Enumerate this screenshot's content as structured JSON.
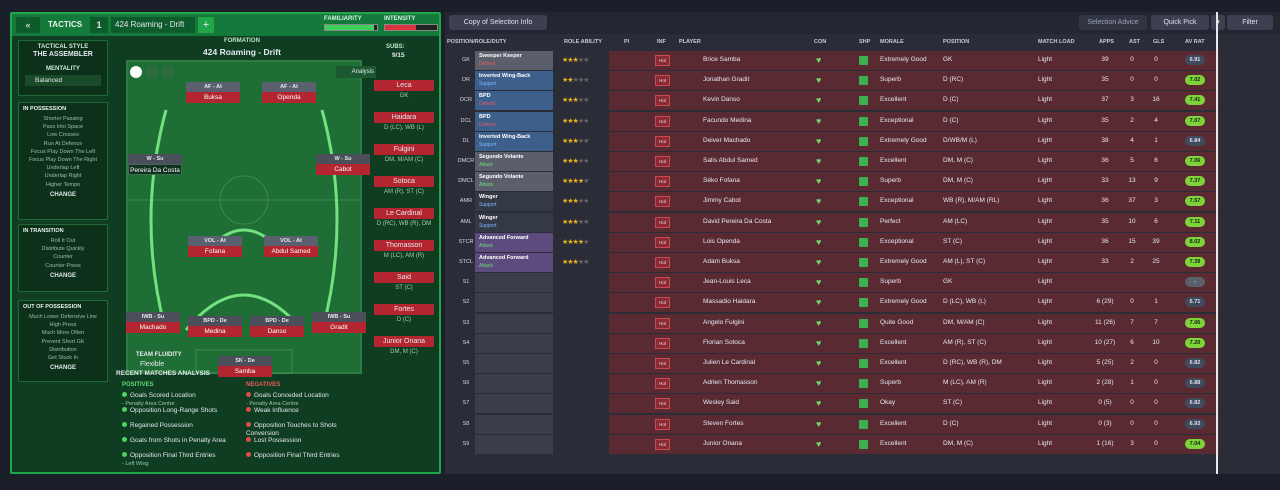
{
  "tactics_header": {
    "label": "TACTICS",
    "slot": "1",
    "tactic_name": "424 Roaming - Drift",
    "familiarity_label": "FAMILIARITY",
    "intensity_label": "INTENSITY",
    "familiarity": 0.95,
    "intensity": 0.6
  },
  "tactical_style": {
    "title": "TACTICAL STYLE",
    "name": "THE ASSEMBLER"
  },
  "mentality": {
    "label": "MENTALITY",
    "value": "Balanced"
  },
  "in_possession": {
    "title": "IN POSSESSION",
    "items": [
      "Shorter Passing",
      "Pass Into Space",
      "Low Crosses",
      "Run At Defence",
      "Focus Play Down The Left",
      "Focus Play Down The Right",
      "Underlap Left",
      "Underlap Right",
      "Higher Tempo"
    ],
    "change": "CHANGE"
  },
  "in_transition": {
    "title": "IN TRANSITION",
    "items": [
      "Roll It Out",
      "Distribute Quickly",
      "Counter",
      "Counter-Press"
    ],
    "change": "CHANGE"
  },
  "out_possession": {
    "title": "OUT OF POSSESSION",
    "items": [
      "Much Lower Defensive Line",
      "High Press",
      "Much More Often",
      "Prevent Short GK",
      "Distribution",
      "Get Stuck In"
    ],
    "change": "CHANGE"
  },
  "formation": {
    "title": "FORMATION",
    "name": "424 Roaming - Drift",
    "analysis": "Analysis"
  },
  "team_fluidity": {
    "label": "TEAM FLUIDITY",
    "value": "Flexible"
  },
  "pitch_positions": [
    {
      "role": "AF - At",
      "name": "Buksa"
    },
    {
      "role": "AF - At",
      "name": "Openda"
    },
    {
      "role": "W - Su",
      "name": "Pereira Da Costa"
    },
    {
      "role": "W - Su",
      "name": "Cabot"
    },
    {
      "role": "VOL - At",
      "name": "Fofana"
    },
    {
      "role": "VOL - At",
      "name": "Abdul Samed"
    },
    {
      "role": "IWB - Su",
      "name": "Machado"
    },
    {
      "role": "BPD - De",
      "name": "Medina"
    },
    {
      "role": "BPD - De",
      "name": "Danso"
    },
    {
      "role": "IWB - Su",
      "name": "Gradit"
    },
    {
      "role": "SK - De",
      "name": "Samba"
    }
  ],
  "subs": {
    "title": "SUBS:",
    "count": "9/15",
    "players": [
      {
        "name": "Leca",
        "pos": "GK"
      },
      {
        "name": "Haidara",
        "pos": "D (LC), WB (L)"
      },
      {
        "name": "Fulgini",
        "pos": "DM, M/AM (C)"
      },
      {
        "name": "Sotoca",
        "pos": "AM (R), ST (C)"
      },
      {
        "name": "Le Cardinal",
        "pos": "D (RC), WB (R), DM"
      },
      {
        "name": "Thomasson",
        "pos": "M (LC), AM (R)"
      },
      {
        "name": "Said",
        "pos": "ST (C)"
      },
      {
        "name": "Fortes",
        "pos": "D (C)"
      },
      {
        "name": "Junior Onana",
        "pos": "DM, M (C)"
      }
    ]
  },
  "recent": {
    "title": "RECENT MATCHES ANALYSIS",
    "positives_label": "POSITIVES",
    "negatives_label": "NEGATIVES",
    "positives": [
      {
        "t": "Goals Scored Location",
        "s": "- Penalty Area Centre"
      },
      {
        "t": "Opposition Long-Range Shots",
        "s": ""
      },
      {
        "t": "Regained Possession",
        "s": ""
      },
      {
        "t": "Goals from Shots in Penalty Area",
        "s": ""
      },
      {
        "t": "Opposition Final Third Entries",
        "s": "- Left Wing"
      }
    ],
    "negatives": [
      {
        "t": "Goals Conceded Location",
        "s": "- Penalty Area Centre"
      },
      {
        "t": "Weak Influence",
        "s": ""
      },
      {
        "t": "Opposition Touches to Shots Conversion",
        "s": ""
      },
      {
        "t": "Lost Possession",
        "s": ""
      },
      {
        "t": "Opposition Final Third Entries",
        "s": ""
      }
    ]
  },
  "toolbar": {
    "view": "Copy of Selection Info",
    "selection_advice": "Selection Advice",
    "quick_pick": "Quick Pick",
    "filter": "Filter"
  },
  "columns": [
    "POSITION/ROLE/DUTY",
    "ROLE ABILITY",
    "PI",
    "INF",
    "PLAYER",
    "CON",
    "SHP",
    "MORALE",
    "POSITION",
    "MATCH LOAD",
    "APPS",
    "AST",
    "GLS",
    "AV RAT"
  ],
  "rows": [
    {
      "slot": "GK",
      "role": "Sweeper Keeper",
      "duty": "Defend",
      "stars": 3,
      "player": "Brice Samba",
      "morale": "Extremely Good",
      "position": "GK",
      "load": "Light",
      "apps": "39",
      "ast": "0",
      "gls": "0",
      "rating": "6.91"
    },
    {
      "slot": "DR",
      "role": "Inverted Wing-Back",
      "duty": "Support",
      "stars": 2,
      "player": "Jonathan Gradit",
      "morale": "Superb",
      "position": "D (RC)",
      "load": "Light",
      "apps": "35",
      "ast": "0",
      "gls": "0",
      "rating": "7.02"
    },
    {
      "slot": "DCR",
      "role": "BPD",
      "duty": "Defend",
      "stars": 3,
      "player": "Kevin Danso",
      "morale": "Excellent",
      "position": "D (C)",
      "load": "Light",
      "apps": "37",
      "ast": "3",
      "gls": "16",
      "rating": "7.41"
    },
    {
      "slot": "DCL",
      "role": "BPD",
      "duty": "Defend",
      "stars": 3,
      "player": "Facundo Medina",
      "morale": "Exceptional",
      "position": "D (C)",
      "load": "Light",
      "apps": "35",
      "ast": "2",
      "gls": "4",
      "rating": "7.07"
    },
    {
      "slot": "DL",
      "role": "Inverted Wing-Back",
      "duty": "Support",
      "stars": 3,
      "player": "Deiver Machado",
      "morale": "Extremely Good",
      "position": "D/WB/M (L)",
      "load": "Light",
      "apps": "38",
      "ast": "4",
      "gls": "1",
      "rating": "6.84"
    },
    {
      "slot": "DMCR",
      "role": "Segundo Volante",
      "duty": "Attack",
      "stars": 2.5,
      "player": "Salis Abdul Samed",
      "morale": "Excellent",
      "position": "DM, M (C)",
      "load": "Light",
      "apps": "36",
      "ast": "5",
      "gls": "6",
      "rating": "7.06"
    },
    {
      "slot": "DMCL",
      "role": "Segundo Volante",
      "duty": "Attack",
      "stars": 4,
      "player": "Séko Fofana",
      "morale": "Superb",
      "position": "DM, M (C)",
      "load": "Light",
      "apps": "33",
      "ast": "13",
      "gls": "9",
      "rating": "7.37"
    },
    {
      "slot": "AMR",
      "role": "Winger",
      "duty": "Support",
      "stars": 3,
      "player": "Jimmy Cabot",
      "morale": "Exceptional",
      "position": "WB (R), M/AM (RL)",
      "load": "Light",
      "apps": "36",
      "ast": "37",
      "gls": "3",
      "rating": "7.57"
    },
    {
      "slot": "AML",
      "role": "Winger",
      "duty": "Support",
      "stars": 2.5,
      "player": "David Pereira Da Costa",
      "morale": "Perfect",
      "position": "AM (LC)",
      "load": "Light",
      "apps": "35",
      "ast": "10",
      "gls": "6",
      "rating": "7.11"
    },
    {
      "slot": "STCR",
      "role": "Advanced Forward",
      "duty": "Attack",
      "stars": 4,
      "player": "Lois Openda",
      "morale": "Exceptional",
      "position": "ST (C)",
      "load": "Light",
      "apps": "36",
      "ast": "15",
      "gls": "39",
      "rating": "8.02"
    },
    {
      "slot": "STCL",
      "role": "Advanced Forward",
      "duty": "Attack",
      "stars": 2.5,
      "player": "Adam Buksa",
      "morale": "Extremely Good",
      "position": "AM (L), ST (C)",
      "load": "Light",
      "apps": "33",
      "ast": "2",
      "gls": "25",
      "rating": "7.39"
    },
    {
      "slot": "S1",
      "role": "",
      "duty": "",
      "stars": 0,
      "player": "Jean-Louis Leca",
      "morale": "Superb",
      "position": "GK",
      "load": "Light",
      "apps": "",
      "ast": "",
      "gls": "",
      "rating": "-"
    },
    {
      "slot": "S2",
      "role": "",
      "duty": "",
      "stars": 0,
      "player": "Massadio Haidara",
      "morale": "Extremely Good",
      "position": "D (LC), WB (L)",
      "load": "Light",
      "apps": "6 (29)",
      "ast": "0",
      "gls": "1",
      "rating": "6.71"
    },
    {
      "slot": "S3",
      "role": "",
      "duty": "",
      "stars": 0,
      "player": "Angelo Fulgini",
      "morale": "Quite Good",
      "position": "DM, M/AM (C)",
      "load": "Light",
      "apps": "11 (26)",
      "ast": "7",
      "gls": "7",
      "rating": "7.06"
    },
    {
      "slot": "S4",
      "role": "",
      "duty": "",
      "stars": 0,
      "player": "Florian Sotoca",
      "morale": "Excellent",
      "position": "AM (R), ST (C)",
      "load": "Light",
      "apps": "10 (27)",
      "ast": "6",
      "gls": "10",
      "rating": "7.20"
    },
    {
      "slot": "S5",
      "role": "",
      "duty": "",
      "stars": 0,
      "player": "Julien Le Cardinal",
      "morale": "Excellent",
      "position": "D (RC), WB (R), DM",
      "load": "Light",
      "apps": "5 (25)",
      "ast": "2",
      "gls": "0",
      "rating": "6.82"
    },
    {
      "slot": "S6",
      "role": "",
      "duty": "",
      "stars": 0,
      "player": "Adrien Thomasson",
      "morale": "Superb",
      "position": "M (LC), AM (R)",
      "load": "Light",
      "apps": "2 (28)",
      "ast": "1",
      "gls": "0",
      "rating": "6.88"
    },
    {
      "slot": "S7",
      "role": "",
      "duty": "",
      "stars": 0,
      "player": "Wesley Said",
      "morale": "Okay",
      "position": "ST (C)",
      "load": "Light",
      "apps": "0 (5)",
      "ast": "0",
      "gls": "0",
      "rating": "6.82"
    },
    {
      "slot": "S8",
      "role": "",
      "duty": "",
      "stars": 0,
      "player": "Steven Fortes",
      "morale": "Excellent",
      "position": "D (C)",
      "load": "Light",
      "apps": "0 (3)",
      "ast": "0",
      "gls": "0",
      "rating": "6.93"
    },
    {
      "slot": "S9",
      "role": "",
      "duty": "",
      "stars": 0,
      "player": "Junior Onana",
      "morale": "Excellent",
      "position": "DM, M (C)",
      "load": "Light",
      "apps": "1 (16)",
      "ast": "3",
      "gls": "0",
      "rating": "7.04"
    }
  ]
}
